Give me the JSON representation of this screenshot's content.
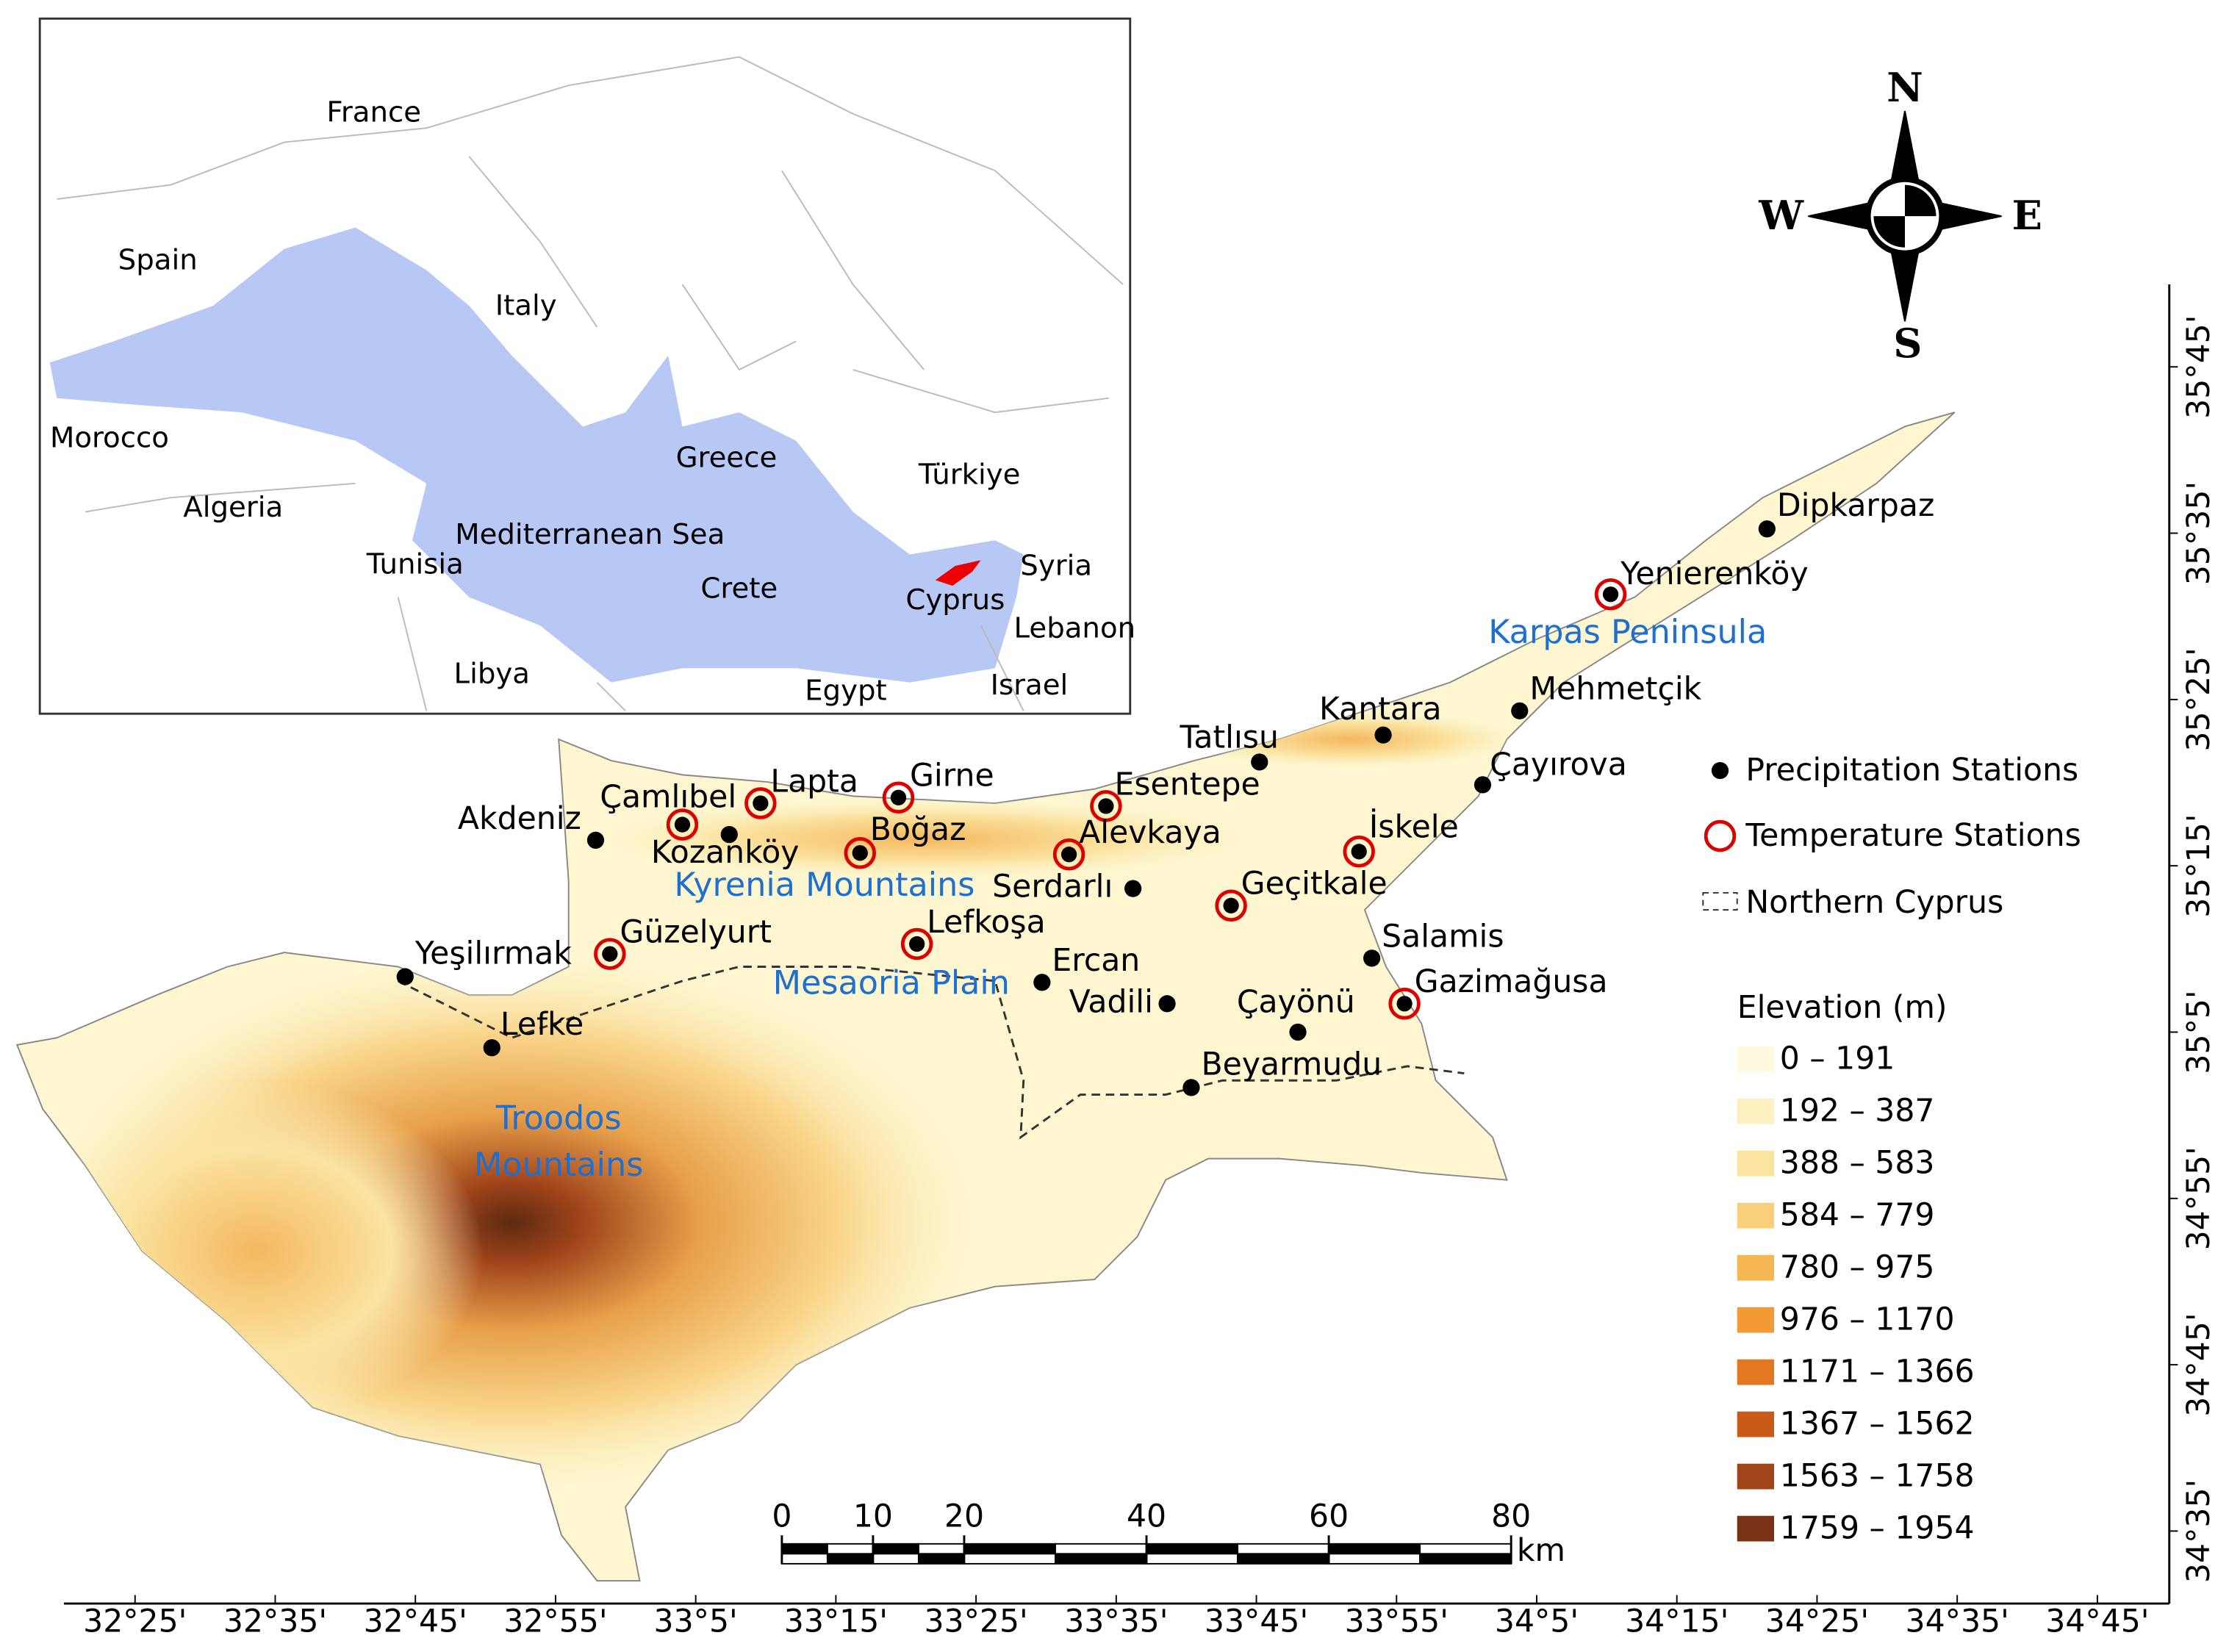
{
  "inset": {
    "labels": [
      "France",
      "Spain",
      "Italy",
      "Morocco",
      "Algeria",
      "Greece",
      "Türkiye",
      "Tunisia",
      "Mediterranean Sea",
      "Crete",
      "Syria",
      "Cyprus",
      "Lebanon",
      "Libya",
      "Egypt",
      "Israel"
    ]
  },
  "compass": {
    "north": "N",
    "south": "S",
    "east": "E",
    "west": "W"
  },
  "temperature_stations": [
    "Yenierenköy",
    "Esentepe",
    "Girne",
    "Lapta",
    "Çamlıbel",
    "Boğaz",
    "Alevkaya",
    "İskele",
    "Geçitkale",
    "Güzelyurt",
    "Lefkoşa",
    "Gazimağusa"
  ],
  "precipitation_stations": [
    "Dipkarpaz",
    "Mehmetçik",
    "Kantara",
    "Tatlısu",
    "Çayırova",
    "Akdeniz",
    "Kozanköy",
    "Serdarlı",
    "Salamis",
    "Yeşilırmak",
    "Ercan",
    "Vadili",
    "Çayönü",
    "Lefke",
    "Beyarmudu"
  ],
  "regions": [
    "Karpas Peninsula",
    "Kyrenia Mountains",
    "Mesaoria Plain"
  ],
  "troodos": [
    "Troodos",
    "Mountains"
  ],
  "legend": {
    "precipitation": "Precipitation Stations",
    "temperature": "Temperature Stations",
    "boundary": "Northern Cyprus",
    "elevation_title": "Elevation (m)",
    "classes": [
      "0 – 191",
      "192 – 387",
      "388 – 583",
      "584 – 779",
      "780 – 975",
      "976 – 1170",
      "1171 – 1366",
      "1367 – 1562",
      "1563 – 1758",
      "1759 – 1954"
    ],
    "colors": [
      "#fefae0",
      "#fdf0c0",
      "#fbe3a0",
      "#f9cf7a",
      "#f7b654",
      "#f39a36",
      "#e27722",
      "#c85b18",
      "#a0441a",
      "#7a3216"
    ]
  },
  "scale_bar": {
    "ticks": [
      0,
      10,
      20,
      40,
      60,
      80
    ],
    "unit": "km"
  },
  "longitude_labels": [
    "32°25'",
    "32°35'",
    "32°45'",
    "32°55'",
    "33°5'",
    "33°15'",
    "33°25'",
    "33°35'",
    "33°45'",
    "33°55'",
    "34°5'",
    "34°15'",
    "34°25'",
    "34°35'",
    "34°45'"
  ],
  "latitude_labels": [
    "35°45'",
    "35°35'",
    "35°25'",
    "35°15'",
    "35°5'",
    "34°55'",
    "34°45'",
    "34°35'"
  ]
}
